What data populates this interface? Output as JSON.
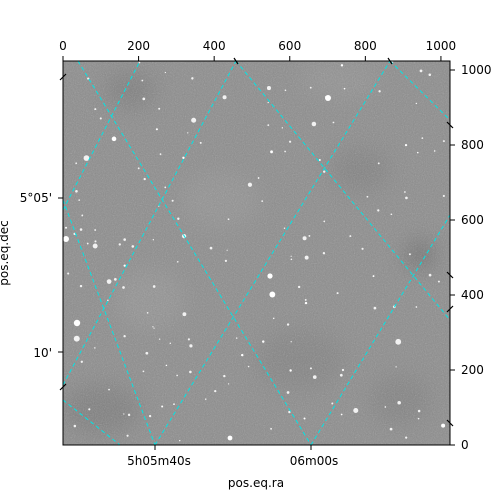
{
  "figure": {
    "xlabel": "pos.eq.ra",
    "ylabel": "pos.eq.dec",
    "pixel_axes": {
      "top_ticks": [
        "0",
        "200",
        "400",
        "600",
        "800",
        "1000"
      ],
      "top_values": [
        0,
        200,
        400,
        600,
        800,
        1000
      ],
      "right_ticks": [
        "0",
        "200",
        "400",
        "600",
        "800",
        "1000"
      ],
      "right_values": [
        0,
        200,
        400,
        600,
        800,
        1000
      ],
      "xlim": [
        0,
        1024
      ],
      "ylim": [
        0,
        1024
      ]
    },
    "world_axes": {
      "ra_ticks": [
        "5h05m40s",
        "06m00s"
      ],
      "dec_ticks": [
        "5°05'",
        "10'"
      ]
    },
    "grid": true,
    "grid_color": "#00e5e5",
    "image_colormap": "gray",
    "image_mean_color": "#8a8a8a"
  }
}
